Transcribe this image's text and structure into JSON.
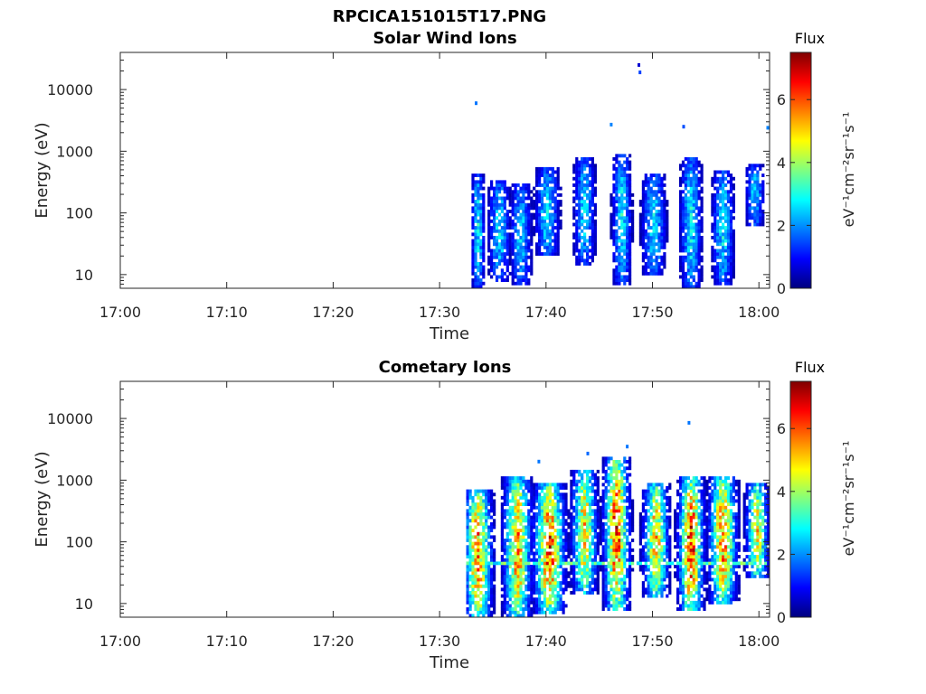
{
  "figure_title": "RPCICA151015T17.PNG",
  "colormap": "jet",
  "chart_data": [
    {
      "type": "heatmap",
      "title": "Solar Wind Ions",
      "xlabel": "Time",
      "ylabel": "Energy (eV)",
      "xtick_labels": [
        "17:00",
        "17:10",
        "17:20",
        "17:30",
        "17:40",
        "17:50",
        "18:00"
      ],
      "xlim_minutes_after_1700": [
        0,
        61
      ],
      "ytick_labels": [
        "10",
        "100",
        "1000",
        "10000"
      ],
      "yscale": "log",
      "ylim": [
        6,
        40000
      ],
      "colorbar": {
        "title": "Flux",
        "unit_label": "eV⁻¹cm⁻²sr⁻¹s⁻¹",
        "ticks": [
          "0",
          "2",
          "4",
          "6"
        ],
        "range": [
          0,
          7.5
        ]
      },
      "data_start_minute": 33,
      "data_end_minute": 61,
      "bursts": [
        {
          "t": 33.5,
          "lo": 6,
          "hi": 450,
          "peak": 2.9,
          "spread": 0.5
        },
        {
          "t": 35.5,
          "lo": 8,
          "hi": 350,
          "peak": 2.7,
          "spread": 0.8
        },
        {
          "t": 37.5,
          "lo": 7,
          "hi": 300,
          "peak": 2.6,
          "spread": 0.8
        },
        {
          "t": 40.0,
          "lo": 20,
          "hi": 550,
          "peak": 2.8,
          "spread": 0.9
        },
        {
          "t": 43.5,
          "lo": 15,
          "hi": 800,
          "peak": 2.7,
          "spread": 0.8
        },
        {
          "t": 47.0,
          "lo": 7,
          "hi": 900,
          "peak": 2.9,
          "spread": 0.7
        },
        {
          "t": 50.0,
          "lo": 10,
          "hi": 450,
          "peak": 2.7,
          "spread": 0.9
        },
        {
          "t": 53.5,
          "lo": 6,
          "hi": 800,
          "peak": 2.9,
          "spread": 0.8
        },
        {
          "t": 56.5,
          "lo": 7,
          "hi": 500,
          "peak": 2.8,
          "spread": 0.8
        },
        {
          "t": 59.5,
          "lo": 60,
          "hi": 600,
          "peak": 2.6,
          "spread": 0.7
        }
      ],
      "sparse_points": [
        {
          "t": 33.3,
          "e": 6000,
          "v": 1.8
        },
        {
          "t": 48.6,
          "e": 25000,
          "v": 0.6
        },
        {
          "t": 48.7,
          "e": 19000,
          "v": 1.4
        },
        {
          "t": 46.0,
          "e": 2700,
          "v": 1.9
        },
        {
          "t": 52.8,
          "e": 2500,
          "v": 1.5
        },
        {
          "t": 60.7,
          "e": 2400,
          "v": 1.9
        }
      ]
    },
    {
      "type": "heatmap",
      "title": "Cometary Ions",
      "xlabel": "Time",
      "ylabel": "Energy (eV)",
      "xtick_labels": [
        "17:00",
        "17:10",
        "17:20",
        "17:30",
        "17:40",
        "17:50",
        "18:00"
      ],
      "xlim_minutes_after_1700": [
        0,
        61
      ],
      "ytick_labels": [
        "10",
        "100",
        "1000",
        "10000"
      ],
      "yscale": "log",
      "ylim": [
        6,
        40000
      ],
      "colorbar": {
        "title": "Flux",
        "unit_label": "eV⁻¹cm⁻²sr⁻¹s⁻¹",
        "ticks": [
          "0",
          "2",
          "4",
          "6"
        ],
        "range": [
          0,
          7.5
        ]
      },
      "data_start_minute": 33,
      "data_end_minute": 61,
      "bursts": [
        {
          "t": 33.5,
          "lo": 6,
          "hi": 700,
          "peak": 5.9,
          "spread": 1.0
        },
        {
          "t": 37.2,
          "lo": 6,
          "hi": 1200,
          "peak": 5.6,
          "spread": 1.0
        },
        {
          "t": 40.2,
          "lo": 7,
          "hi": 900,
          "peak": 6.2,
          "spread": 1.1
        },
        {
          "t": 43.5,
          "lo": 15,
          "hi": 1500,
          "peak": 5.2,
          "spread": 0.9
        },
        {
          "t": 46.5,
          "lo": 8,
          "hi": 2500,
          "peak": 6.4,
          "spread": 0.9
        },
        {
          "t": 50.2,
          "lo": 12,
          "hi": 900,
          "peak": 5.4,
          "spread": 0.9
        },
        {
          "t": 53.5,
          "lo": 8,
          "hi": 1100,
          "peak": 6.6,
          "spread": 0.9
        },
        {
          "t": 56.5,
          "lo": 10,
          "hi": 1200,
          "peak": 5.9,
          "spread": 1.0
        },
        {
          "t": 59.7,
          "lo": 25,
          "hi": 900,
          "peak": 5.0,
          "spread": 0.8
        }
      ],
      "band": {
        "energy": 45,
        "from": 32.5,
        "to": 60.5,
        "value": 3.5
      },
      "sparse_points": [
        {
          "t": 53.3,
          "e": 8500,
          "v": 1.8
        },
        {
          "t": 47.5,
          "e": 3500,
          "v": 1.8
        },
        {
          "t": 43.8,
          "e": 2700,
          "v": 1.7
        },
        {
          "t": 39.2,
          "e": 2000,
          "v": 1.8
        }
      ]
    }
  ]
}
